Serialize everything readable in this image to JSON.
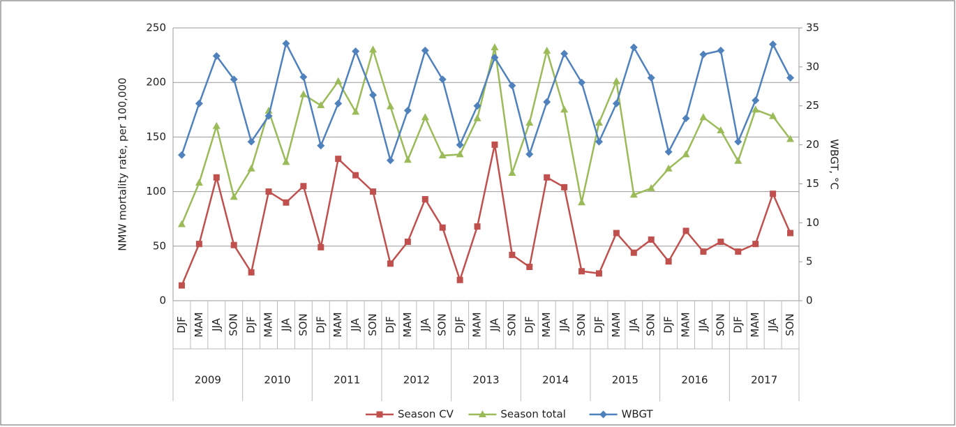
{
  "chart_data": {
    "type": "line",
    "categories": [
      "DJF",
      "MAM",
      "JJA",
      "SON",
      "DJF",
      "MAM",
      "JJA",
      "SON",
      "DJF",
      "MAM",
      "JJA",
      "SON",
      "DJF",
      "MAM",
      "JJA",
      "SON",
      "DJF",
      "MAM",
      "JJA",
      "SON",
      "DJF",
      "MAM",
      "JJA",
      "SON",
      "DJF",
      "MAM",
      "JJA",
      "SON",
      "DJF",
      "MAM",
      "JJA",
      "SON",
      "DJF",
      "MAM",
      "JJA",
      "SON"
    ],
    "groups": [
      "2009",
      "2010",
      "2011",
      "2012",
      "2013",
      "2014",
      "2015",
      "2016",
      "2017"
    ],
    "ylabel": "NMW mortality rate, per 100,000",
    "y2label": "WBGT, °C",
    "ylim": [
      0,
      250
    ],
    "yticks": [
      0,
      50,
      100,
      150,
      200,
      250
    ],
    "y2lim": [
      0,
      35
    ],
    "y2ticks": [
      0,
      5,
      10,
      15,
      20,
      25,
      30,
      35
    ],
    "grid": true,
    "legend": "bottom",
    "series": [
      {
        "name": "Season CV",
        "color": "#c0504d",
        "marker": "square",
        "values": [
          14,
          52,
          113,
          51,
          26,
          100,
          90,
          105,
          49,
          130,
          115,
          100,
          34,
          54,
          93,
          67,
          19,
          68,
          143,
          42,
          31,
          113,
          104,
          27,
          25,
          62,
          44,
          56,
          36,
          64,
          45,
          54,
          45,
          52,
          98,
          62
        ]
      },
      {
        "name": "Season total",
        "color": "#9bbb59",
        "marker": "triangle",
        "values": [
          70,
          108,
          160,
          95,
          121,
          174,
          127,
          189,
          179,
          201,
          173,
          230,
          178,
          129,
          168,
          133,
          134,
          167,
          232,
          117,
          163,
          229,
          175,
          90,
          163,
          201,
          97,
          103,
          121,
          134,
          168,
          156,
          128,
          175,
          169,
          148
        ]
      },
      {
        "name": "WBGT",
        "color": "#4f81bd",
        "marker": "diamond",
        "axis": "y2",
        "values": [
          18.7,
          25.3,
          31.4,
          28.4,
          20.4,
          23.7,
          33.0,
          28.7,
          19.9,
          25.3,
          32.0,
          26.4,
          18.0,
          24.4,
          32.1,
          28.4,
          20.0,
          25.0,
          31.2,
          27.6,
          18.8,
          25.5,
          31.7,
          28.0,
          20.4,
          25.3,
          32.5,
          28.6,
          19.1,
          23.4,
          31.6,
          32.1,
          20.4,
          25.7,
          32.9,
          28.6
        ]
      }
    ]
  }
}
